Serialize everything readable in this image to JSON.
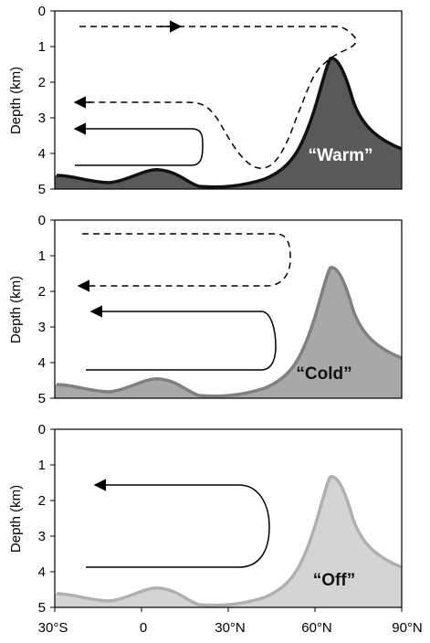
{
  "panels": [
    {
      "label": "“Warm”",
      "label_color": "#ffffff",
      "fill_color": "#595959",
      "line_color": "#111111"
    },
    {
      "label": "“Cold”",
      "label_color": "#111111",
      "fill_color": "#a8a8a8",
      "line_color": "#808080"
    },
    {
      "label": "“Off”",
      "label_color": "#111111",
      "fill_color": "#d4d4d4",
      "line_color": "#b0b0b0"
    }
  ],
  "y_axis": {
    "label": "Depth (km)",
    "ticks": [
      "0",
      "1",
      "2",
      "3",
      "4",
      "5"
    ]
  },
  "x_axis": {
    "ticks": [
      "30°S",
      "0",
      "30°N",
      "60°N",
      "90°N"
    ]
  }
}
